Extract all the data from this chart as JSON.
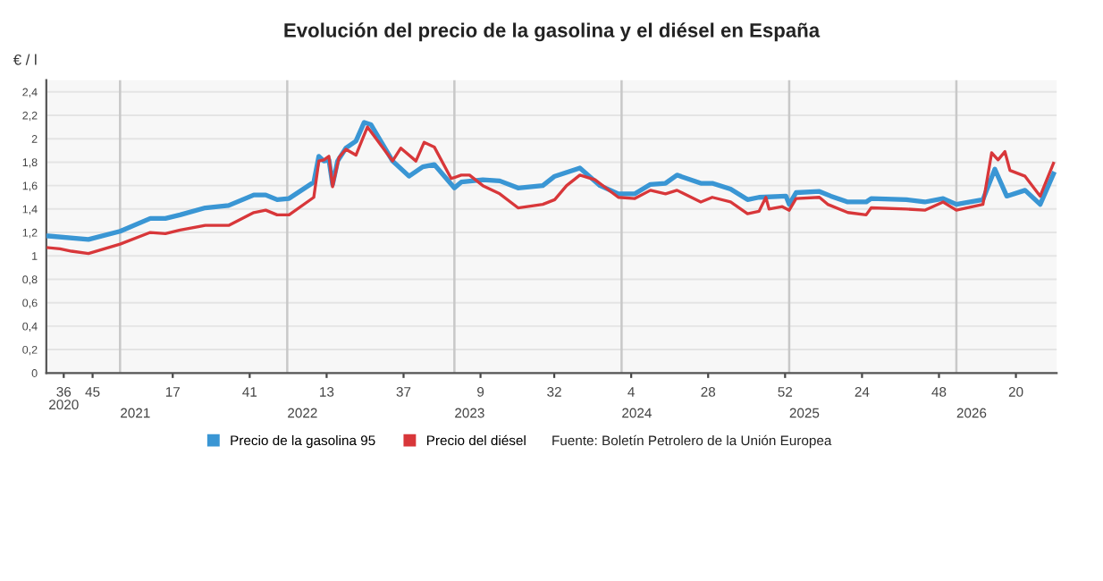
{
  "chart_data": {
    "type": "line",
    "title": "Evolución del precio de la gasolina y el diésel en España",
    "ylabel": "€ / l",
    "annotations": [
      "Fuente: Boletín Petrolero de la Unión Europea"
    ],
    "series": [
      {
        "name": "Precio de la gasolina 95",
        "color": "#3a96d4",
        "x": [
          "2020-07-28",
          "2020-10-24",
          "2021-01-01",
          "2021-03-08",
          "2021-04-10",
          "2021-05-12",
          "2021-07-06",
          "2021-08-26",
          "2021-10-20",
          "2021-11-15",
          "2021-12-10",
          "2022-01-05",
          "2022-02-28",
          "2022-03-11",
          "2022-03-22",
          "2022-04-02",
          "2022-04-10",
          "2022-04-21",
          "2022-05-09",
          "2022-05-31",
          "2022-06-18",
          "2022-07-03",
          "2022-08-19",
          "2022-09-24",
          "2022-10-24",
          "2022-11-18",
          "2023-01-01",
          "2023-01-16",
          "2023-03-04",
          "2023-04-10",
          "2023-05-20",
          "2023-07-13",
          "2023-08-08",
          "2023-10-02",
          "2023-11-15",
          "2023-12-25",
          "2024-01-30",
          "2024-03-04",
          "2024-04-06",
          "2024-05-01",
          "2024-06-22",
          "2024-07-17",
          "2024-08-26",
          "2024-10-02",
          "2024-10-27",
          "2024-12-25",
          "2025-01-01",
          "2025-01-16",
          "2025-03-08",
          "2025-04-02",
          "2025-05-09",
          "2025-06-18",
          "2025-06-29",
          "2025-09-14",
          "2025-10-24",
          "2025-12-03",
          "2026-01-01",
          "2026-02-28",
          "2026-03-26",
          "2026-04-21",
          "2026-05-31",
          "2026-07-03",
          "2026-08-01"
        ],
        "values": [
          1.17,
          1.14,
          1.21,
          1.32,
          1.32,
          1.35,
          1.41,
          1.43,
          1.52,
          1.52,
          1.48,
          1.49,
          1.63,
          1.85,
          1.81,
          1.82,
          1.61,
          1.81,
          1.92,
          1.98,
          2.14,
          2.12,
          1.81,
          1.68,
          1.76,
          1.78,
          1.58,
          1.63,
          1.65,
          1.64,
          1.58,
          1.6,
          1.68,
          1.75,
          1.6,
          1.53,
          1.53,
          1.61,
          1.62,
          1.69,
          1.62,
          1.62,
          1.57,
          1.48,
          1.5,
          1.51,
          1.44,
          1.54,
          1.55,
          1.51,
          1.46,
          1.46,
          1.49,
          1.48,
          1.46,
          1.49,
          1.44,
          1.48,
          1.74,
          1.51,
          1.56,
          1.44,
          1.7
        ]
      },
      {
        "name": "Precio del diésel",
        "color": "#d8373a",
        "x": [
          "2020-07-28",
          "2020-08-23",
          "2020-09-17",
          "2020-10-24",
          "2021-01-01",
          "2021-03-08",
          "2021-04-10",
          "2021-05-12",
          "2021-07-06",
          "2021-08-26",
          "2021-10-20",
          "2021-11-15",
          "2021-12-10",
          "2022-01-05",
          "2022-02-28",
          "2022-03-11",
          "2022-03-22",
          "2022-04-02",
          "2022-04-10",
          "2022-04-24",
          "2022-05-09",
          "2022-05-31",
          "2022-06-25",
          "2022-08-19",
          "2022-09-06",
          "2022-10-09",
          "2022-10-27",
          "2022-11-18",
          "2022-12-25",
          "2023-01-16",
          "2023-02-03",
          "2023-03-04",
          "2023-04-10",
          "2023-05-20",
          "2023-07-13",
          "2023-08-08",
          "2023-09-03",
          "2023-10-02",
          "2023-11-04",
          "2023-12-25",
          "2024-01-30",
          "2024-03-04",
          "2024-04-06",
          "2024-05-01",
          "2024-06-22",
          "2024-07-17",
          "2024-08-26",
          "2024-10-02",
          "2024-10-27",
          "2024-11-11",
          "2024-11-18",
          "2024-12-17",
          "2025-01-01",
          "2025-01-16",
          "2025-03-08",
          "2025-03-26",
          "2025-05-09",
          "2025-06-18",
          "2025-06-29",
          "2025-09-14",
          "2025-10-24",
          "2025-12-03",
          "2026-01-01",
          "2026-02-28",
          "2026-03-19",
          "2026-04-02",
          "2026-04-17",
          "2026-04-28",
          "2026-05-31",
          "2026-07-03",
          "2026-08-01"
        ],
        "values": [
          1.07,
          1.06,
          1.04,
          1.02,
          1.1,
          1.2,
          1.19,
          1.22,
          1.26,
          1.26,
          1.37,
          1.39,
          1.35,
          1.35,
          1.5,
          1.81,
          1.82,
          1.85,
          1.59,
          1.84,
          1.91,
          1.86,
          2.1,
          1.81,
          1.92,
          1.81,
          1.97,
          1.93,
          1.66,
          1.69,
          1.69,
          1.6,
          1.53,
          1.41,
          1.44,
          1.48,
          1.6,
          1.69,
          1.65,
          1.5,
          1.49,
          1.56,
          1.53,
          1.56,
          1.46,
          1.5,
          1.46,
          1.36,
          1.38,
          1.5,
          1.4,
          1.42,
          1.39,
          1.49,
          1.5,
          1.44,
          1.37,
          1.35,
          1.41,
          1.4,
          1.39,
          1.46,
          1.39,
          1.44,
          1.88,
          1.82,
          1.89,
          1.73,
          1.68,
          1.51,
          1.79
        ]
      }
    ],
    "xlim": [
      "2020-07-24",
      "2026-08-08"
    ],
    "xticks": [
      {
        "value": "2020-08-31",
        "label": "36\n2020"
      },
      {
        "value": "2020-11-02",
        "label": "45"
      },
      {
        "value": "2021-04-26",
        "label": "17"
      },
      {
        "value": "2021-10-11",
        "label": "41"
      },
      {
        "value": "2022-03-28",
        "label": "13"
      },
      {
        "value": "2022-09-12",
        "label": "37"
      },
      {
        "value": "2023-02-27",
        "label": "9"
      },
      {
        "value": "2023-08-07",
        "label": "32"
      },
      {
        "value": "2024-01-22",
        "label": "4"
      },
      {
        "value": "2024-07-08",
        "label": "28"
      },
      {
        "value": "2024-12-23",
        "label": "52"
      },
      {
        "value": "2025-06-09",
        "label": "24"
      },
      {
        "value": "2025-11-24",
        "label": "48"
      },
      {
        "value": "2026-05-11",
        "label": "20"
      }
    ],
    "ylim": [
      0,
      2.5
    ],
    "yticks": [
      0,
      {
        "value": 0.2,
        "label": "0,2"
      },
      {
        "value": 0.4,
        "label": "0,4"
      },
      {
        "value": 0.6,
        "label": "0,6"
      },
      {
        "value": 0.8,
        "label": "0,8"
      },
      1,
      {
        "value": 1.2,
        "label": "1,2"
      },
      {
        "value": 1.4,
        "label": "1,4"
      },
      {
        "value": 1.6,
        "label": "1,6"
      },
      {
        "value": 1.8,
        "label": "1,8"
      },
      2,
      {
        "value": 2.2,
        "label": "2,2"
      },
      {
        "value": 2.4,
        "label": "2,4"
      }
    ],
    "ref_lines": [
      {
        "axis": "x",
        "value": "2021-01-01",
        "label": "2021",
        "color": "#c8c8c8"
      },
      {
        "axis": "x",
        "value": "2022-01-01",
        "label": "2022",
        "color": "#c8c8c8"
      },
      {
        "axis": "x",
        "value": "2023-01-01",
        "label": "2023",
        "color": "#c8c8c8"
      },
      {
        "axis": "x",
        "value": "2024-01-01",
        "label": "2024",
        "color": "#c8c8c8"
      },
      {
        "axis": "x",
        "value": "2025-01-01",
        "label": "2025",
        "color": "#c8c8c8"
      },
      {
        "axis": "x",
        "value": "2026-01-01",
        "label": "2026",
        "color": "#c8c8c8"
      }
    ],
    "grid": "y",
    "legend": "bottom",
    "marker": "none",
    "line_style": "solid"
  }
}
